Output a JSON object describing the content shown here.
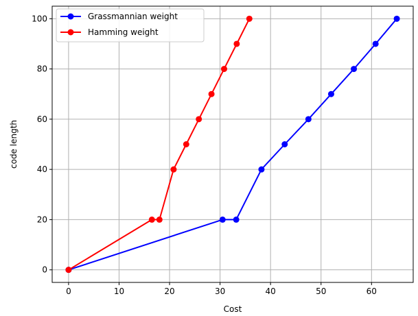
{
  "chart_data": {
    "type": "line",
    "title": "",
    "xlabel": "Cost",
    "ylabel": "code length",
    "xlim": [
      -3.25,
      68.25
    ],
    "ylim": [
      -5,
      105
    ],
    "xticks": [
      0,
      10,
      20,
      30,
      40,
      50,
      60
    ],
    "yticks": [
      0,
      20,
      40,
      60,
      80,
      100
    ],
    "grid": true,
    "legend": "upper-left",
    "series": [
      {
        "name": "Grassmannian weight",
        "color": "#0000ff",
        "marker": "circle",
        "x": [
          0,
          30.5,
          33.2,
          38.2,
          42.8,
          47.5,
          52,
          56.5,
          60.8,
          65
        ],
        "y": [
          0,
          20,
          20,
          40,
          50,
          60,
          70,
          80,
          90,
          100
        ]
      },
      {
        "name": "Hamming weight",
        "color": "#ff0000",
        "marker": "circle",
        "x": [
          0,
          16.5,
          18,
          20.8,
          23.3,
          25.8,
          28.3,
          30.8,
          33.3,
          35.8
        ],
        "y": [
          0,
          20,
          20,
          40,
          50,
          60,
          70,
          80,
          90,
          100
        ]
      }
    ]
  }
}
